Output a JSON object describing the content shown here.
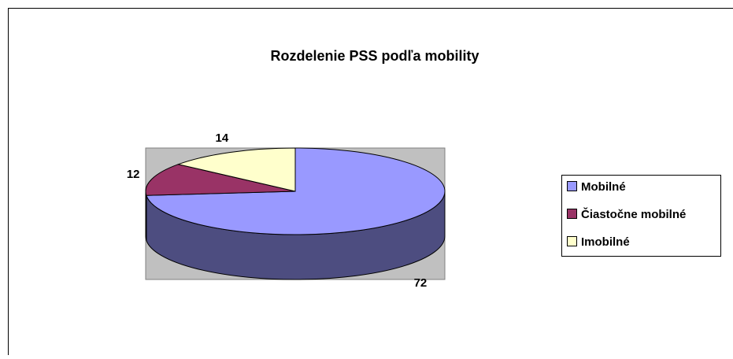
{
  "chart_data": {
    "type": "pie",
    "title": "Rozdelenie PSS podľa mobility",
    "categories": [
      "Mobilné",
      "Čiastočne mobilné",
      "Imobilné"
    ],
    "values": [
      72,
      12,
      14
    ],
    "colors": [
      "#9999ff",
      "#993366",
      "#ffffcc"
    ],
    "legend": "right",
    "three_d": true
  }
}
